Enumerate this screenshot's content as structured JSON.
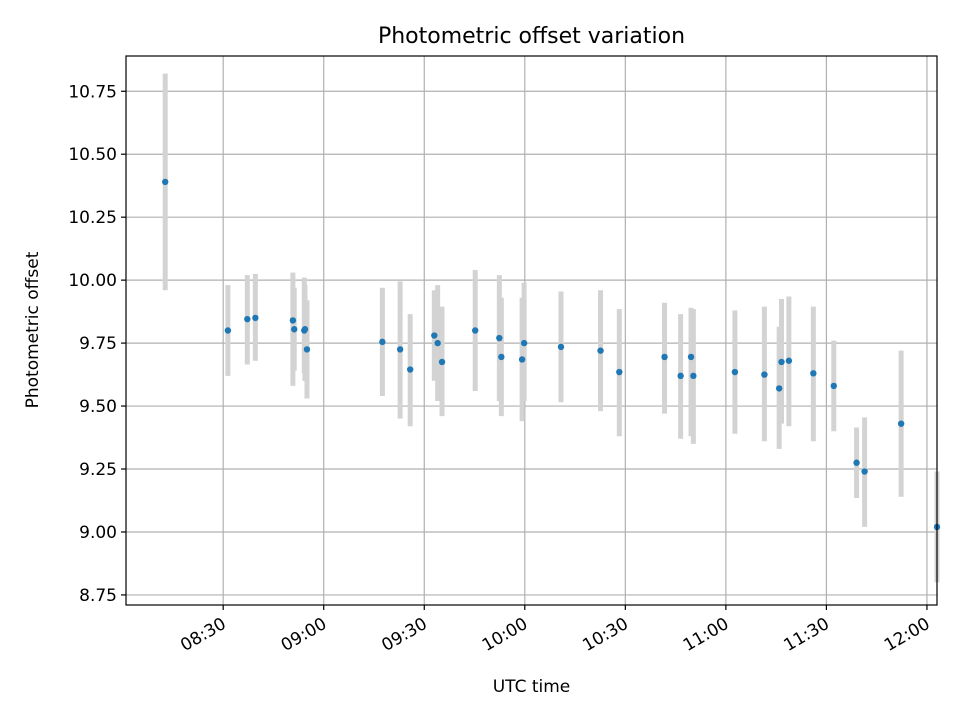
{
  "chart_data": {
    "type": "scatter",
    "title": "Photometric offset variation",
    "xlabel": "UTC time",
    "ylabel": "Photometric offset",
    "grid": true,
    "x_unit": "minutes since 00:00 UTC",
    "xlim": [
      481,
      723
    ],
    "ylim": [
      8.71,
      10.89
    ],
    "x_ticks": [
      {
        "value": 510,
        "label": "08:30"
      },
      {
        "value": 540,
        "label": "09:00"
      },
      {
        "value": 570,
        "label": "09:30"
      },
      {
        "value": 600,
        "label": "10:00"
      },
      {
        "value": 630,
        "label": "10:30"
      },
      {
        "value": 660,
        "label": "11:00"
      },
      {
        "value": 690,
        "label": "11:30"
      },
      {
        "value": 720,
        "label": "12:00"
      }
    ],
    "y_ticks": [
      {
        "value": 8.75,
        "label": "8.75"
      },
      {
        "value": 9.0,
        "label": "9.00"
      },
      {
        "value": 9.25,
        "label": "9.25"
      },
      {
        "value": 9.5,
        "label": "9.50"
      },
      {
        "value": 9.75,
        "label": "9.75"
      },
      {
        "value": 10.0,
        "label": "10.00"
      },
      {
        "value": 10.25,
        "label": "10.25"
      },
      {
        "value": 10.5,
        "label": "10.50"
      },
      {
        "value": 10.75,
        "label": "10.75"
      }
    ],
    "point_color": "#1f77b4",
    "errorbar_color": "#d3d3d3",
    "series": [
      {
        "name": "Photometric offset",
        "x": [
          492.7,
          511.4,
          517.2,
          519.6,
          530.8,
          531.2,
          534.2,
          534.4,
          535.0,
          557.5,
          562.8,
          565.8,
          573.0,
          574.0,
          575.3,
          585.2,
          592.4,
          593.0,
          599.2,
          599.8,
          610.8,
          622.6,
          628.2,
          641.7,
          646.5,
          649.6,
          650.3,
          662.7,
          671.5,
          675.9,
          676.6,
          678.8,
          686.1,
          692.2,
          699.0,
          701.4,
          712.3,
          723.0
        ],
        "y": [
          10.39,
          9.8,
          9.845,
          9.85,
          9.84,
          9.805,
          9.8,
          9.805,
          9.725,
          9.755,
          9.725,
          9.645,
          9.78,
          9.75,
          9.675,
          9.8,
          9.77,
          9.695,
          9.685,
          9.75,
          9.735,
          9.72,
          9.635,
          9.695,
          9.62,
          9.695,
          9.62,
          9.635,
          9.625,
          9.57,
          9.675,
          9.68,
          9.63,
          9.58,
          9.275,
          9.24,
          9.43,
          9.02
        ],
        "yerr_low": [
          9.96,
          9.62,
          9.665,
          9.68,
          9.58,
          9.64,
          9.63,
          9.6,
          9.53,
          9.54,
          9.45,
          9.42,
          9.6,
          9.52,
          9.46,
          9.56,
          9.52,
          9.46,
          9.44,
          9.52,
          9.515,
          9.48,
          9.38,
          9.47,
          9.37,
          9.38,
          9.35,
          9.39,
          9.36,
          9.33,
          9.43,
          9.42,
          9.36,
          9.4,
          9.135,
          9.02,
          9.14,
          8.8
        ],
        "yerr_high": [
          10.82,
          9.98,
          10.02,
          10.025,
          10.03,
          9.97,
          10.01,
          9.98,
          9.92,
          9.97,
          9.995,
          9.865,
          9.96,
          9.98,
          9.895,
          10.04,
          10.02,
          9.93,
          9.93,
          9.99,
          9.955,
          9.96,
          9.885,
          9.91,
          9.865,
          9.89,
          9.885,
          9.88,
          9.895,
          9.815,
          9.925,
          9.935,
          9.895,
          9.76,
          9.415,
          9.455,
          9.72,
          9.24
        ]
      }
    ]
  }
}
